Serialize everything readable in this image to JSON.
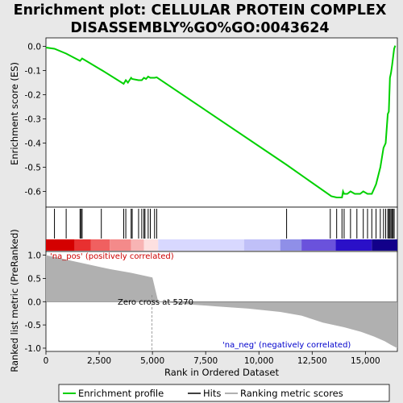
{
  "title_line1": "Enrichment plot: CELLULAR PROTEIN COMPLEX",
  "title_line2": "DISASSEMBLY%GO%GO:0043624",
  "legend": {
    "enrichment": "Enrichment profile",
    "hits": "Hits",
    "ranking": "Ranking metric scores"
  },
  "colors": {
    "enrichment_line": "#00d000",
    "hit_line": "#000000",
    "ranking_fill": "#b0b0b0",
    "pos_label": "#cc0000",
    "neg_label": "#0000cc",
    "plot_bg": "#ffffff",
    "page_bg": "#e8e8e8"
  },
  "chart_data": [
    {
      "type": "line",
      "ylabel": "Enrichment score (ES)",
      "yticks": [
        "0.0",
        "-0.1",
        "-0.2",
        "-0.3",
        "-0.4",
        "-0.5",
        "-0.6"
      ],
      "ylim": [
        -0.665,
        0.035
      ],
      "xlim": [
        0,
        16500
      ],
      "grid": false,
      "x": [
        0,
        400,
        950,
        1600,
        1700,
        2550,
        2650,
        3650,
        3750,
        3850,
        4000,
        4050,
        4350,
        4500,
        4600,
        4700,
        4800,
        4900,
        5100,
        5200,
        11300,
        13400,
        13650,
        13900,
        13950,
        14000,
        14150,
        14300,
        14500,
        14750,
        14900,
        15100,
        15300,
        15450,
        15500,
        15700,
        15850,
        15950,
        16050,
        16100,
        16150,
        16200,
        16250,
        16350,
        16400
      ],
      "y": [
        -0.005,
        -0.01,
        -0.03,
        -0.06,
        -0.05,
        -0.095,
        -0.1,
        -0.155,
        -0.14,
        -0.15,
        -0.13,
        -0.135,
        -0.14,
        -0.14,
        -0.13,
        -0.135,
        -0.125,
        -0.13,
        -0.13,
        -0.128,
        -0.49,
        -0.62,
        -0.625,
        -0.625,
        -0.6,
        -0.61,
        -0.61,
        -0.6,
        -0.61,
        -0.61,
        -0.6,
        -0.61,
        -0.61,
        -0.58,
        -0.57,
        -0.5,
        -0.42,
        -0.4,
        -0.28,
        -0.27,
        -0.13,
        -0.11,
        -0.08,
        -0.01,
        0.003
      ]
    },
    {
      "type": "hits",
      "x": [
        400,
        950,
        1600,
        1650,
        1700,
        2600,
        3650,
        3750,
        4000,
        4050,
        4350,
        4500,
        4600,
        4650,
        4800,
        4900,
        5100,
        5200,
        11300,
        13350,
        13650,
        13900,
        14000,
        14300,
        14600,
        14900,
        15100,
        15300,
        15500,
        15700,
        15850,
        15950,
        16050,
        16100,
        16150,
        16200,
        16250,
        16300,
        16350
      ]
    },
    {
      "type": "area",
      "ylabel": "Ranked list metric (PreRanked)",
      "xlabel": "Rank in Ordered Dataset",
      "xticks": [
        "0",
        "2,500",
        "5,000",
        "7,500",
        "10,000",
        "12,500",
        "15,000"
      ],
      "yticks": [
        "1.0",
        "0.5",
        "0.0",
        "-0.5",
        "-1.0"
      ],
      "ylim": [
        -1.07,
        1.08
      ],
      "x": [
        0,
        300,
        1000,
        2000,
        3000,
        4000,
        5000,
        5270,
        6500,
        8000,
        9500,
        11000,
        12000,
        13000,
        14000,
        14800,
        15400,
        15900,
        16200,
        16500
      ],
      "y": [
        1.0,
        0.97,
        0.9,
        0.8,
        0.7,
        0.62,
        0.52,
        0.0,
        -0.05,
        -0.1,
        -0.15,
        -0.22,
        -0.3,
        -0.45,
        -0.55,
        -0.65,
        -0.75,
        -0.85,
        -0.93,
        -1.0
      ],
      "annotations": {
        "zero_cross": "Zero cross at 5270",
        "pos": "'na_pos' (positively correlated)",
        "neg": "'na_neg' (negatively correlated)"
      }
    }
  ]
}
